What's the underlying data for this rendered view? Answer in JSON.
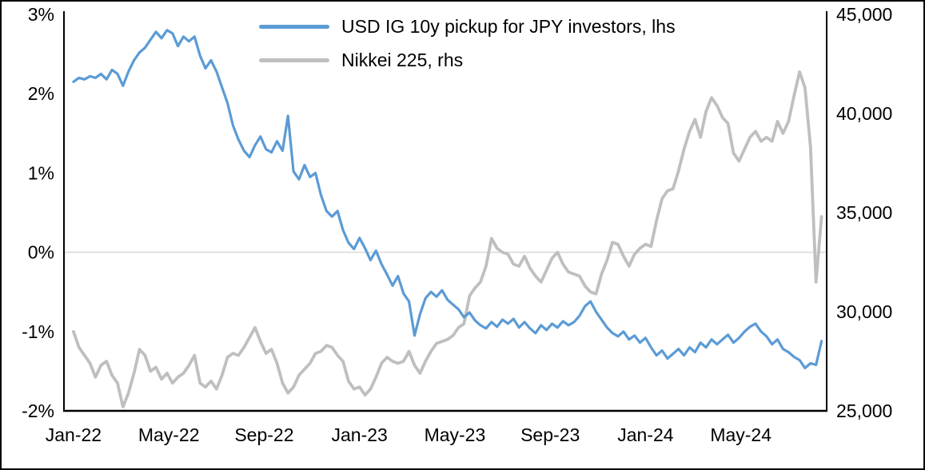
{
  "chart_data": {
    "type": "line",
    "title": "",
    "legend_position": "top-inside",
    "grid": "single horizontal gridline at 0% only",
    "background": "#ffffff",
    "axis_color": "#000000",
    "zero_gridline_color": "#d9d9d9",
    "sampling": "weekly points, Jan-2022 through mid-Aug-2024",
    "x_step_months": 0.230769,
    "x_range_months": [
      -0.4,
      31.6
    ],
    "x_tick_positions_months": [
      0,
      4,
      8,
      12,
      16,
      20,
      24,
      28
    ],
    "x_tick_labels": [
      "Jan-22",
      "May-22",
      "Sep-22",
      "Jan-23",
      "May-23",
      "Sep-23",
      "Jan-24",
      "May-24"
    ],
    "left_axis": {
      "range": [
        -2,
        3
      ],
      "tick_values": [
        3,
        2,
        1,
        0,
        -1,
        -2
      ],
      "tick_labels": [
        "3%",
        "2%",
        "1%",
        "0%",
        "-1%",
        "-2%"
      ]
    },
    "right_axis": {
      "range": [
        25000,
        45000
      ],
      "tick_values": [
        45000,
        40000,
        35000,
        30000,
        25000
      ],
      "tick_labels": [
        "45,000",
        "40,000",
        "35,000",
        "30,000",
        "25,000"
      ]
    },
    "series": [
      {
        "name": "USD IG 10y pickup for JPY investors, lhs",
        "axis": "left",
        "unit": "%",
        "color": "#5B9BD5",
        "line_width": 3.2,
        "values": [
          2.15,
          2.2,
          2.18,
          2.22,
          2.2,
          2.25,
          2.18,
          2.3,
          2.25,
          2.1,
          2.28,
          2.42,
          2.52,
          2.58,
          2.68,
          2.78,
          2.7,
          2.8,
          2.76,
          2.6,
          2.72,
          2.66,
          2.72,
          2.48,
          2.32,
          2.42,
          2.28,
          2.08,
          1.88,
          1.6,
          1.42,
          1.28,
          1.2,
          1.35,
          1.46,
          1.3,
          1.26,
          1.4,
          1.28,
          1.72,
          1.02,
          0.92,
          1.1,
          0.95,
          1.0,
          0.72,
          0.52,
          0.45,
          0.52,
          0.28,
          0.12,
          0.04,
          0.18,
          0.05,
          -0.1,
          0.02,
          -0.15,
          -0.28,
          -0.42,
          -0.3,
          -0.52,
          -0.62,
          -1.05,
          -0.78,
          -0.58,
          -0.5,
          -0.56,
          -0.48,
          -0.6,
          -0.66,
          -0.72,
          -0.82,
          -0.76,
          -0.86,
          -0.92,
          -0.96,
          -0.88,
          -0.94,
          -0.85,
          -0.9,
          -0.84,
          -0.95,
          -0.88,
          -0.96,
          -1.02,
          -0.92,
          -0.98,
          -0.9,
          -0.95,
          -0.87,
          -0.92,
          -0.88,
          -0.8,
          -0.68,
          -0.62,
          -0.75,
          -0.85,
          -0.95,
          -1.02,
          -1.06,
          -1.0,
          -1.1,
          -1.05,
          -1.14,
          -1.08,
          -1.2,
          -1.3,
          -1.24,
          -1.34,
          -1.28,
          -1.22,
          -1.3,
          -1.2,
          -1.26,
          -1.14,
          -1.2,
          -1.1,
          -1.16,
          -1.1,
          -1.04,
          -1.14,
          -1.08,
          -1.0,
          -0.94,
          -0.9,
          -1.0,
          -1.06,
          -1.16,
          -1.1,
          -1.22,
          -1.26,
          -1.32,
          -1.36,
          -1.46,
          -1.4,
          -1.42,
          -1.12
        ]
      },
      {
        "name": "Nikkei 225, rhs",
        "axis": "right",
        "unit": "index points",
        "color": "#BFBFBF",
        "line_width": 3.8,
        "values": [
          29000,
          28200,
          27800,
          27400,
          26700,
          27300,
          27500,
          26800,
          26400,
          25200,
          25900,
          26900,
          28100,
          27800,
          27000,
          27200,
          26600,
          26900,
          26400,
          26700,
          26900,
          27300,
          27800,
          26400,
          26200,
          26500,
          26100,
          26800,
          27700,
          27900,
          27800,
          28200,
          28700,
          29200,
          28500,
          27900,
          28100,
          27400,
          26400,
          25900,
          26200,
          26800,
          27100,
          27400,
          27900,
          28000,
          28300,
          28200,
          27800,
          27500,
          26500,
          26100,
          26200,
          25800,
          26100,
          26700,
          27400,
          27700,
          27500,
          27400,
          27500,
          28000,
          27300,
          26900,
          27500,
          28000,
          28400,
          28500,
          28600,
          28800,
          29200,
          29400,
          30800,
          31200,
          31500,
          32300,
          33700,
          33200,
          33000,
          32900,
          32400,
          32300,
          32800,
          32200,
          31800,
          31500,
          32100,
          32700,
          33000,
          32400,
          32000,
          31900,
          31800,
          31300,
          31000,
          30900,
          31900,
          32600,
          33500,
          33400,
          32800,
          32300,
          32900,
          33200,
          33400,
          33300,
          34600,
          35700,
          36100,
          36200,
          37100,
          38200,
          39100,
          39700,
          38800,
          40100,
          40800,
          40400,
          39800,
          39500,
          38000,
          37600,
          38200,
          38800,
          39100,
          38600,
          38800,
          38600,
          39600,
          39000,
          39600,
          40900,
          42100,
          41300,
          38300,
          31500,
          34800
        ]
      }
    ]
  }
}
